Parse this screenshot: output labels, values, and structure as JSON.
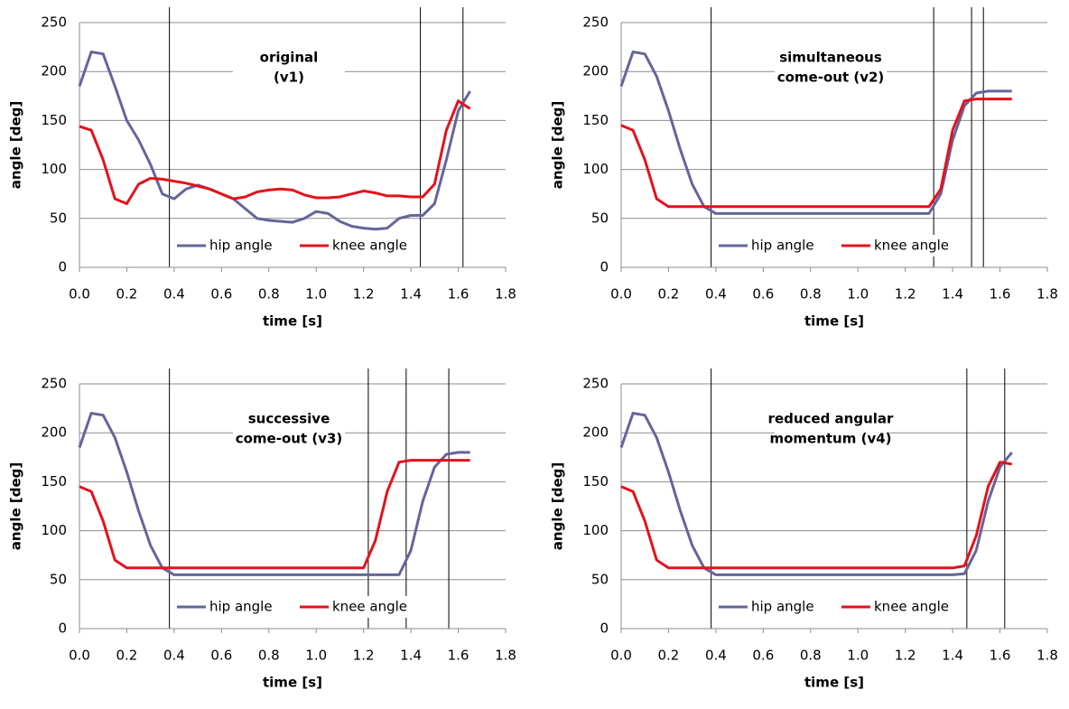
{
  "chart_data": [
    {
      "type": "line",
      "title": [
        "original",
        "(v1)"
      ],
      "xlabel": "time [s]",
      "ylabel": "angle [deg]",
      "xlim": [
        0,
        1.8
      ],
      "xticks": [
        {
          "value": 0,
          "label": "0.0"
        },
        0.2,
        0.4,
        0.6,
        0.8,
        {
          "value": 1,
          "label": "1.0"
        },
        1.2,
        1.4,
        1.6,
        1.8
      ],
      "ylim": [
        0,
        250
      ],
      "yticks": [
        0,
        50,
        100,
        150,
        200,
        250
      ],
      "grid": true,
      "legend": "lower center",
      "x": [
        0,
        0.05,
        0.1,
        0.15,
        0.2,
        0.25,
        0.3,
        0.35,
        0.4,
        0.45,
        0.5,
        0.55,
        0.6,
        0.65,
        0.7,
        0.75,
        0.8,
        0.85,
        0.9,
        0.95,
        1,
        1.05,
        1.1,
        1.15,
        1.2,
        1.25,
        1.3,
        1.35,
        1.4,
        1.45,
        1.5,
        1.55,
        1.6,
        1.65
      ],
      "series": [
        {
          "name": "hip angle",
          "color": "#65659a",
          "values": [
            185,
            220,
            218,
            185,
            150,
            130,
            105,
            75,
            70,
            80,
            84,
            80,
            75,
            70,
            60,
            50,
            48,
            47,
            46,
            50,
            57,
            55,
            47,
            42,
            40,
            39,
            40,
            50,
            53,
            53,
            65,
            110,
            160,
            180
          ]
        },
        {
          "name": "knee angle",
          "color": "#e3121b",
          "values": [
            144,
            140,
            110,
            70,
            65,
            85,
            91,
            90,
            88,
            86,
            83,
            80,
            75,
            70,
            72,
            77,
            79,
            80,
            79,
            74,
            71,
            71,
            72,
            75,
            78,
            76,
            73,
            73,
            72,
            72,
            85,
            140,
            170,
            162
          ]
        }
      ],
      "vlines": [
        0.38,
        1.44,
        1.62
      ]
    },
    {
      "type": "line",
      "title": [
        "simultaneous",
        "come-out (v2)"
      ],
      "xlabel": "time [s]",
      "ylabel": "angle [deg]",
      "xlim": [
        0,
        1.8
      ],
      "xticks": [
        {
          "value": 0,
          "label": "0.0"
        },
        0.2,
        0.4,
        0.6,
        0.8,
        {
          "value": 1,
          "label": "1.0"
        },
        1.2,
        1.4,
        1.6,
        1.8
      ],
      "ylim": [
        0,
        250
      ],
      "yticks": [
        0,
        50,
        100,
        150,
        200,
        250
      ],
      "grid": true,
      "legend": "lower center",
      "x": [
        0,
        0.05,
        0.1,
        0.15,
        0.2,
        0.25,
        0.3,
        0.35,
        0.4,
        0.45,
        0.5,
        0.55,
        0.6,
        0.65,
        0.7,
        0.75,
        0.8,
        0.85,
        0.9,
        0.95,
        1,
        1.05,
        1.1,
        1.15,
        1.2,
        1.25,
        1.3,
        1.35,
        1.4,
        1.45,
        1.5,
        1.55,
        1.6,
        1.65
      ],
      "series": [
        {
          "name": "hip angle",
          "color": "#65659a",
          "values": [
            185,
            220,
            218,
            195,
            160,
            120,
            85,
            62,
            55,
            55,
            55,
            55,
            55,
            55,
            55,
            55,
            55,
            55,
            55,
            55,
            55,
            55,
            55,
            55,
            55,
            55,
            55,
            75,
            130,
            165,
            178,
            180,
            180,
            180
          ]
        },
        {
          "name": "knee angle",
          "color": "#e3121b",
          "values": [
            145,
            140,
            110,
            70,
            62,
            62,
            62,
            62,
            62,
            62,
            62,
            62,
            62,
            62,
            62,
            62,
            62,
            62,
            62,
            62,
            62,
            62,
            62,
            62,
            62,
            62,
            62,
            80,
            140,
            170,
            172,
            172,
            172,
            172
          ]
        }
      ],
      "vlines": [
        0.38,
        1.32,
        1.48,
        1.53
      ]
    },
    {
      "type": "line",
      "title": [
        "successive",
        "come-out (v3)"
      ],
      "xlabel": "time [s]",
      "ylabel": "angle [deg]",
      "xlim": [
        0,
        1.8
      ],
      "xticks": [
        {
          "value": 0,
          "label": "0.0"
        },
        0.2,
        0.4,
        0.6,
        0.8,
        {
          "value": 1,
          "label": "1.0"
        },
        1.2,
        1.4,
        1.6,
        1.8
      ],
      "ylim": [
        0,
        250
      ],
      "yticks": [
        0,
        50,
        100,
        150,
        200,
        250
      ],
      "grid": true,
      "legend": "lower center",
      "x": [
        0,
        0.05,
        0.1,
        0.15,
        0.2,
        0.25,
        0.3,
        0.35,
        0.4,
        0.45,
        0.5,
        0.55,
        0.6,
        0.65,
        0.7,
        0.75,
        0.8,
        0.85,
        0.9,
        0.95,
        1,
        1.05,
        1.1,
        1.15,
        1.2,
        1.25,
        1.3,
        1.35,
        1.4,
        1.45,
        1.5,
        1.55,
        1.6,
        1.65
      ],
      "series": [
        {
          "name": "hip angle",
          "color": "#65659a",
          "values": [
            185,
            220,
            218,
            195,
            160,
            120,
            85,
            62,
            55,
            55,
            55,
            55,
            55,
            55,
            55,
            55,
            55,
            55,
            55,
            55,
            55,
            55,
            55,
            55,
            55,
            55,
            55,
            55,
            80,
            130,
            165,
            178,
            180,
            180
          ]
        },
        {
          "name": "knee angle",
          "color": "#e3121b",
          "values": [
            145,
            140,
            110,
            70,
            62,
            62,
            62,
            62,
            62,
            62,
            62,
            62,
            62,
            62,
            62,
            62,
            62,
            62,
            62,
            62,
            62,
            62,
            62,
            62,
            62,
            90,
            140,
            170,
            172,
            172,
            172,
            172,
            172,
            172
          ]
        }
      ],
      "vlines": [
        0.38,
        1.22,
        1.38,
        1.56
      ]
    },
    {
      "type": "line",
      "title": [
        "reduced angular",
        "momentum (v4)"
      ],
      "xlabel": "time [s]",
      "ylabel": "angle [deg]",
      "xlim": [
        0,
        1.8
      ],
      "xticks": [
        {
          "value": 0,
          "label": "0.0"
        },
        0.2,
        0.4,
        0.6,
        0.8,
        {
          "value": 1,
          "label": "1.0"
        },
        1.2,
        1.4,
        1.6,
        1.8
      ],
      "ylim": [
        0,
        250
      ],
      "yticks": [
        0,
        50,
        100,
        150,
        200,
        250
      ],
      "grid": true,
      "legend": "lower center",
      "x": [
        0,
        0.05,
        0.1,
        0.15,
        0.2,
        0.25,
        0.3,
        0.35,
        0.4,
        0.45,
        0.5,
        0.55,
        0.6,
        0.65,
        0.7,
        0.75,
        0.8,
        0.85,
        0.9,
        0.95,
        1,
        1.05,
        1.1,
        1.15,
        1.2,
        1.25,
        1.3,
        1.35,
        1.4,
        1.45,
        1.5,
        1.55,
        1.6,
        1.65
      ],
      "series": [
        {
          "name": "hip angle",
          "color": "#65659a",
          "values": [
            185,
            220,
            218,
            195,
            160,
            120,
            85,
            62,
            55,
            55,
            55,
            55,
            55,
            55,
            55,
            55,
            55,
            55,
            55,
            55,
            55,
            55,
            55,
            55,
            55,
            55,
            55,
            55,
            55,
            56,
            80,
            130,
            165,
            180
          ]
        },
        {
          "name": "knee angle",
          "color": "#e3121b",
          "values": [
            145,
            140,
            110,
            70,
            62,
            62,
            62,
            62,
            62,
            62,
            62,
            62,
            62,
            62,
            62,
            62,
            62,
            62,
            62,
            62,
            62,
            62,
            62,
            62,
            62,
            62,
            62,
            62,
            62,
            64,
            95,
            145,
            170,
            168
          ]
        }
      ],
      "vlines": [
        0.38,
        1.46,
        1.62
      ]
    }
  ]
}
